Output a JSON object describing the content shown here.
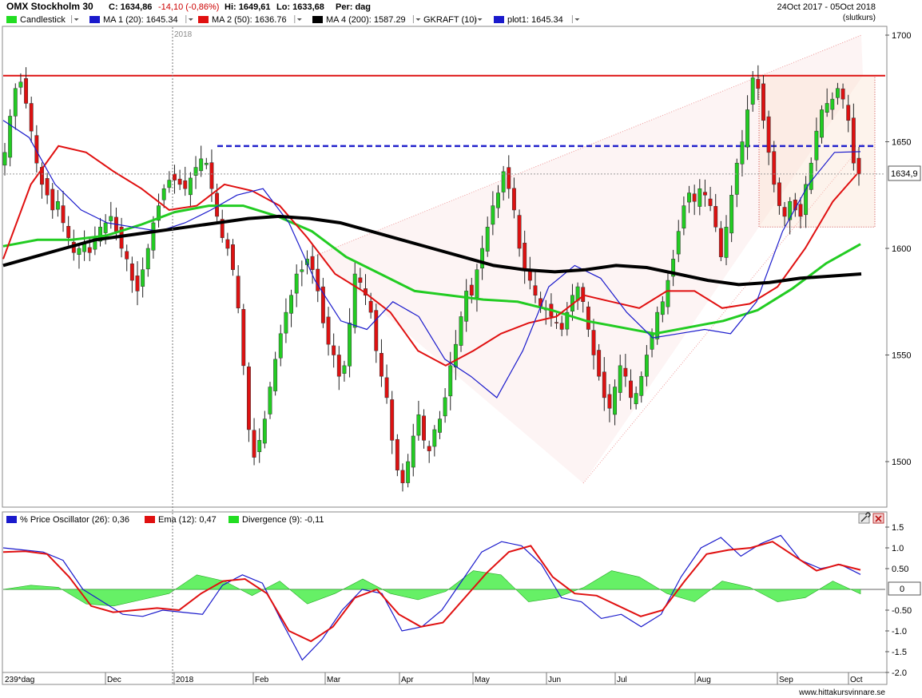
{
  "header": {
    "title": "OMX Stockholm 30",
    "close": "C: 1634,86",
    "change": "-14,10 (-0,86%)",
    "high": "Hi: 1649,61",
    "low": "Lo: 1633,68",
    "period": "Per: dag",
    "date_range": "24Oct 2017 - 05Oct 2018",
    "mode": "(slutkurs)"
  },
  "legend_main": [
    {
      "label": "Candlestick",
      "color": "#22dd22"
    },
    {
      "label": "MA 1 (20): 1645.34",
      "color": "#1a1acc"
    },
    {
      "label": "MA 2 (50): 1636.76",
      "color": "#e01010"
    },
    {
      "label": "MA 4 (200): 1587.29",
      "color": "#000000"
    },
    {
      "label": "GKRAFT (10)",
      "color": ""
    },
    {
      "label": "plot1: 1645.34",
      "color": "#1a1acc"
    }
  ],
  "legend_osc": [
    {
      "label": "% Price Oscillator (26): 0,36",
      "color": "#1a1acc"
    },
    {
      "label": "Ema (12): 0,47",
      "color": "#e01010"
    },
    {
      "label": "Divergence (9): -0,11",
      "color": "#22dd22"
    }
  ],
  "last_price_label": "1634,9",
  "osc_zero_label": "0",
  "year_marker": "2018",
  "period_label": "239*dag",
  "watermark": "www.hittakursvinnare.se",
  "icons": {
    "tool": "wrench-icon",
    "close": "close-icon"
  },
  "colors": {
    "up": "#22cc22",
    "down": "#dd1111",
    "ma20": "#1a1acc",
    "ma50": "#e01010",
    "ma200": "#000000",
    "resistance": "#dd1111",
    "support_dash": "#2222cc",
    "divergence": "#55ee55"
  },
  "chart_data": [
    {
      "type": "candlestick",
      "title": "OMX Stockholm 30",
      "y_ticks": [
        1500,
        1550,
        1600,
        1650,
        1700
      ],
      "ylim": [
        1478,
        1705
      ],
      "x_ticks": [
        "Dec",
        "2018",
        "Feb",
        "Mar",
        "Apr",
        "May",
        "Jun",
        "Jul",
        "Aug",
        "Sep",
        "Oct"
      ],
      "horizontal_lines": [
        {
          "name": "resistance",
          "value": 1681
        },
        {
          "name": "support",
          "value": 1648
        },
        {
          "name": "last",
          "value": 1634.9
        }
      ],
      "close_series": [
        1645,
        1662,
        1675,
        1678,
        1668,
        1655,
        1640,
        1630,
        1625,
        1618,
        1622,
        1612,
        1605,
        1598,
        1600,
        1602,
        1598,
        1605,
        1610,
        1612,
        1615,
        1608,
        1600,
        1595,
        1585,
        1580,
        1590,
        1600,
        1612,
        1620,
        1628,
        1632,
        1632,
        1630,
        1628,
        1633,
        1638,
        1642,
        1640,
        1628,
        1615,
        1605,
        1600,
        1590,
        1572,
        1545,
        1515,
        1502,
        1510,
        1520,
        1535,
        1548,
        1560,
        1570,
        1578,
        1588,
        1590,
        1595,
        1590,
        1580,
        1565,
        1555,
        1550,
        1540,
        1545,
        1565,
        1588,
        1584,
        1578,
        1570,
        1552,
        1540,
        1530,
        1510,
        1496,
        1490,
        1500,
        1512,
        1522,
        1510,
        1505,
        1515,
        1520,
        1530,
        1545,
        1555,
        1568,
        1580,
        1578,
        1590,
        1600,
        1610,
        1620,
        1626,
        1636,
        1628,
        1618,
        1600,
        1590,
        1585,
        1578,
        1572,
        1572,
        1568,
        1565,
        1562,
        1570,
        1578,
        1582,
        1575,
        1562,
        1550,
        1540,
        1530,
        1525,
        1535,
        1545,
        1540,
        1530,
        1532,
        1540,
        1550,
        1560,
        1570,
        1575,
        1585,
        1595,
        1608,
        1620,
        1626,
        1622,
        1628,
        1625,
        1620,
        1610,
        1596,
        1610,
        1625,
        1640,
        1650,
        1665,
        1680,
        1675,
        1660,
        1645,
        1630,
        1620,
        1615,
        1622,
        1618,
        1615,
        1630,
        1640,
        1655,
        1665,
        1668,
        1670,
        1675,
        1670,
        1660,
        1640,
        1634.9
      ],
      "ma20_endpoint": 1645.34,
      "ma50_endpoint": 1636.76,
      "ma200_endpoint": 1587.29,
      "ma200_series": [
        1592,
        1596,
        1600,
        1604,
        1606,
        1608,
        1610,
        1612,
        1614,
        1615,
        1614,
        1612,
        1608,
        1604,
        1600,
        1596,
        1592,
        1590,
        1589,
        1590,
        1592,
        1591,
        1588,
        1585,
        1583,
        1584,
        1586,
        1587,
        1588
      ],
      "ma20_series": [
        1660,
        1652,
        1630,
        1618,
        1612,
        1610,
        1608,
        1612,
        1618,
        1625,
        1628,
        1612,
        1585,
        1566,
        1562,
        1575,
        1568,
        1548,
        1540,
        1530,
        1552,
        1582,
        1592,
        1586,
        1570,
        1558,
        1560,
        1562,
        1560,
        1575,
        1608,
        1630,
        1645,
        1645.34
      ],
      "ma50_series": [
        1595,
        1630,
        1648,
        1645,
        1636,
        1628,
        1618,
        1620,
        1630,
        1627,
        1620,
        1605,
        1588,
        1580,
        1570,
        1552,
        1545,
        1552,
        1560,
        1565,
        1568,
        1578,
        1575,
        1572,
        1580,
        1580,
        1572,
        1574,
        1582,
        1600,
        1622,
        1636.76
      ],
      "ma100_series": [
        1601,
        1604,
        1604,
        1606,
        1611,
        1617,
        1620,
        1620,
        1615,
        1608,
        1596,
        1588,
        1580,
        1578,
        1576,
        1575,
        1571,
        1566,
        1563,
        1560,
        1563,
        1566,
        1571,
        1581,
        1593,
        1602
      ]
    },
    {
      "type": "line",
      "title": "% Price Oscillator",
      "series": [
        {
          "name": "% Price Oscillator (26)",
          "last": 0.36,
          "values": [
            1.0,
            0.95,
            0.9,
            0.7,
            0.0,
            -0.3,
            -0.6,
            -0.65,
            -0.5,
            -0.55,
            -0.6,
            0.1,
            0.35,
            0.15,
            -0.8,
            -1.7,
            -1.2,
            -0.5,
            0.0,
            -0.1,
            -1.0,
            -0.9,
            -0.5,
            0.2,
            0.9,
            1.15,
            1.05,
            0.6,
            -0.2,
            -0.3,
            -0.7,
            -0.6,
            -0.9,
            -0.6,
            0.3,
            1.0,
            1.25,
            0.8,
            1.1,
            1.3,
            0.7,
            0.5,
            0.6,
            0.36
          ]
        },
        {
          "name": "Ema (12)",
          "last": 0.47,
          "values": [
            0.9,
            0.92,
            0.85,
            0.3,
            -0.4,
            -0.55,
            -0.5,
            -0.45,
            -0.5,
            -0.1,
            0.2,
            0.25,
            -0.1,
            -1.0,
            -1.25,
            -0.9,
            -0.2,
            0.0,
            -0.6,
            -0.9,
            -0.8,
            -0.2,
            0.4,
            0.9,
            1.05,
            0.3,
            -0.1,
            -0.15,
            -0.4,
            -0.65,
            -0.5,
            0.2,
            0.85,
            0.95,
            1.0,
            1.15,
            0.8,
            0.45,
            0.6,
            0.47
          ]
        },
        {
          "name": "Divergence (9)",
          "last": -0.11,
          "values": [
            0.0,
            0.1,
            0.05,
            -0.35,
            -0.4,
            -0.25,
            -0.1,
            0.35,
            0.2,
            -0.15,
            0.2,
            -0.35,
            -0.1,
            0.25,
            -0.1,
            -0.25,
            -0.05,
            0.45,
            0.35,
            -0.3,
            -0.2,
            0.05,
            0.45,
            0.3,
            -0.1,
            -0.3,
            0.2,
            0.05,
            -0.3,
            -0.2,
            0.2,
            -0.11
          ]
        }
      ],
      "y_ticks": [
        1.5,
        1.0,
        0.5,
        0,
        -0.5,
        -1.0,
        -1.5,
        -2.0
      ],
      "ylim": [
        -2.0,
        1.5
      ]
    }
  ]
}
